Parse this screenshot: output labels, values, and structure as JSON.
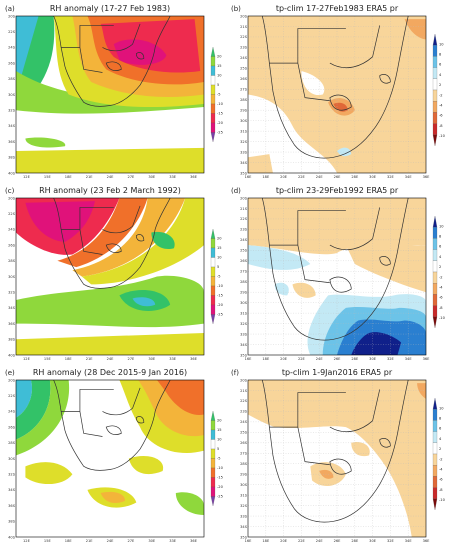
{
  "panels": [
    {
      "id": "a",
      "label": "(a)",
      "title": "RH anomaly (17-27 Feb 1983)",
      "type": "rh",
      "xticks": [
        "12E",
        "15E",
        "18E",
        "21E",
        "24E",
        "27E",
        "30E",
        "33E",
        "36E"
      ],
      "yticks": [
        "20S",
        "22S",
        "24S",
        "26S",
        "28S",
        "30S",
        "32S",
        "34S",
        "36S",
        "38S",
        "40S"
      ],
      "cbar": [
        "20",
        "15",
        "10",
        "5",
        "-5",
        "-10",
        "-15",
        "-20",
        "-25"
      ]
    },
    {
      "id": "b",
      "label": "(b)",
      "title": "tp-clim 17-27Feb1983 ERA5 pr",
      "type": "pr",
      "xticks": [
        "16E",
        "18E",
        "20E",
        "22E",
        "24E",
        "26E",
        "28E",
        "30E",
        "32E",
        "34E",
        "36E"
      ],
      "yticks": [
        "20S",
        "21S",
        "22S",
        "23S",
        "24S",
        "25S",
        "26S",
        "27S",
        "28S",
        "29S",
        "30S",
        "31S",
        "32S",
        "33S",
        "34S",
        "35S"
      ],
      "cbar": [
        "10",
        "8",
        "6",
        "4",
        "2",
        "-2",
        "-4",
        "-6",
        "-8",
        "-10"
      ]
    },
    {
      "id": "c",
      "label": "(c)",
      "title": "RH anomaly (23 Feb 2 March 1992)",
      "type": "rh",
      "xticks": [
        "12E",
        "15E",
        "18E",
        "21E",
        "24E",
        "27E",
        "30E",
        "33E",
        "36E"
      ],
      "yticks": [
        "20S",
        "22S",
        "24S",
        "26S",
        "28S",
        "30S",
        "32S",
        "34S",
        "36S",
        "38S",
        "40S"
      ],
      "cbar": [
        "20",
        "15",
        "10",
        "5",
        "-5",
        "-10",
        "-15",
        "-20",
        "-25"
      ]
    },
    {
      "id": "d",
      "label": "(d)",
      "title": "tp-clim 23-29Feb1992 ERA5 pr",
      "type": "pr",
      "xticks": [
        "16E",
        "18E",
        "20E",
        "22E",
        "24E",
        "26E",
        "28E",
        "30E",
        "32E",
        "34E",
        "36E"
      ],
      "yticks": [
        "20S",
        "21S",
        "22S",
        "23S",
        "24S",
        "25S",
        "26S",
        "27S",
        "28S",
        "29S",
        "30S",
        "31S",
        "32S",
        "33S",
        "34S",
        "35S"
      ],
      "cbar": [
        "10",
        "8",
        "6",
        "4",
        "2",
        "-2",
        "-4",
        "-6",
        "-8",
        "-10"
      ]
    },
    {
      "id": "e",
      "label": "(e)",
      "title": "RH anomaly (28 Dec 2015-9 Jan 2016)",
      "type": "rh",
      "xticks": [
        "12E",
        "15E",
        "18E",
        "21E",
        "24E",
        "27E",
        "30E",
        "33E",
        "36E"
      ],
      "yticks": [
        "20S",
        "22S",
        "24S",
        "26S",
        "28S",
        "30S",
        "32S",
        "34S",
        "36S",
        "38S",
        "40S"
      ],
      "cbar": [
        "20",
        "15",
        "10",
        "5",
        "-5",
        "-10",
        "-15",
        "-20",
        "-25"
      ]
    },
    {
      "id": "f",
      "label": "(f)",
      "title": "tp-clim 1-9Jan2016 ERA5 pr",
      "type": "pr",
      "xticks": [
        "16E",
        "18E",
        "20E",
        "22E",
        "24E",
        "26E",
        "28E",
        "30E",
        "32E",
        "34E",
        "36E"
      ],
      "yticks": [
        "20S",
        "21S",
        "22S",
        "23S",
        "24S",
        "25S",
        "26S",
        "27S",
        "28S",
        "29S",
        "30S",
        "31S",
        "32S",
        "33S",
        "34S",
        "35S"
      ],
      "cbar": [
        "10",
        "8",
        "6",
        "4",
        "2",
        "-2",
        "-4",
        "-6",
        "-8",
        "-10"
      ]
    }
  ],
  "colors": {
    "rh_scale": [
      "#7a3fa6",
      "#3fbdd6",
      "#33c268",
      "#8fd83c",
      "#ffffff",
      "#dede2a",
      "#f3b43a",
      "#f0702a",
      "#ee2b4e",
      "#e0127a"
    ],
    "pr_scale": [
      "#7a0a0a",
      "#c92a2a",
      "#e06838",
      "#f2a860",
      "#f8d59a",
      "#ffffff",
      "#c3e9f5",
      "#6cc3e8",
      "#2a7fd0",
      "#10208a"
    ]
  }
}
